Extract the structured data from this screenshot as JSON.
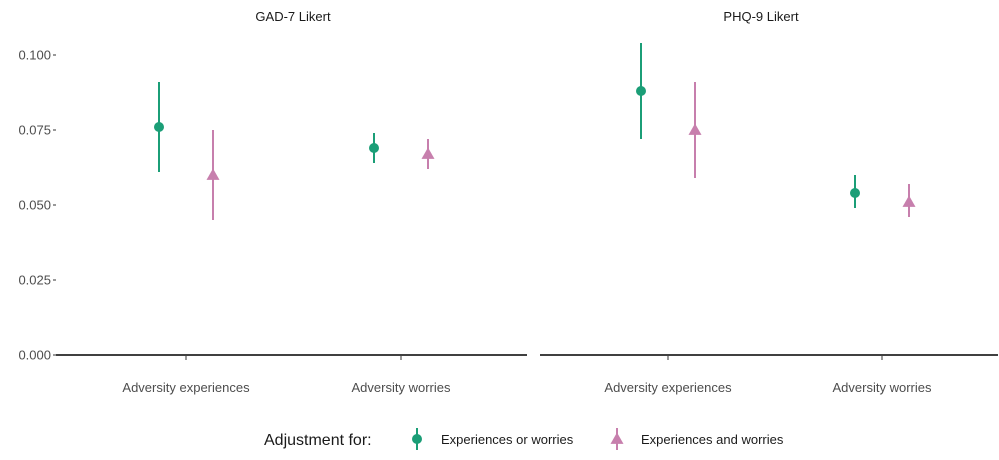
{
  "chart_data": {
    "type": "scatter",
    "variant": "point-range (estimate with interval), faceted",
    "y_ticks": [
      "0.000",
      "0.025",
      "0.050",
      "0.075",
      "0.100"
    ],
    "ylim": [
      0,
      0.105
    ],
    "legend": {
      "title": "Adjustment for:",
      "position": "bottom",
      "entries": [
        {
          "label": "Experiences or worries",
          "color": "#1b9e77",
          "shape": "circle"
        },
        {
          "label": "Experiences and worries",
          "color": "#c77fad",
          "shape": "triangle"
        }
      ]
    },
    "panels": [
      {
        "title": "GAD-7 Likert",
        "categories": [
          "Adversity experiences",
          "Adversity worries"
        ],
        "series": [
          {
            "legend_index": 0,
            "points": [
              {
                "category": "Adversity experiences",
                "y": 0.076,
                "low": 0.061,
                "high": 0.091
              },
              {
                "category": "Adversity worries",
                "y": 0.069,
                "low": 0.064,
                "high": 0.074
              }
            ]
          },
          {
            "legend_index": 1,
            "points": [
              {
                "category": "Adversity experiences",
                "y": 0.06,
                "low": 0.045,
                "high": 0.075
              },
              {
                "category": "Adversity worries",
                "y": 0.067,
                "low": 0.062,
                "high": 0.072
              }
            ]
          }
        ]
      },
      {
        "title": "PHQ-9 Likert",
        "categories": [
          "Adversity experiences",
          "Adversity worries"
        ],
        "series": [
          {
            "legend_index": 0,
            "points": [
              {
                "category": "Adversity experiences",
                "y": 0.088,
                "low": 0.072,
                "high": 0.104
              },
              {
                "category": "Adversity worries",
                "y": 0.054,
                "low": 0.049,
                "high": 0.06
              }
            ]
          },
          {
            "legend_index": 1,
            "points": [
              {
                "category": "Adversity experiences",
                "y": 0.075,
                "low": 0.059,
                "high": 0.091
              },
              {
                "category": "Adversity worries",
                "y": 0.051,
                "low": 0.046,
                "high": 0.057
              }
            ]
          }
        ]
      }
    ]
  }
}
